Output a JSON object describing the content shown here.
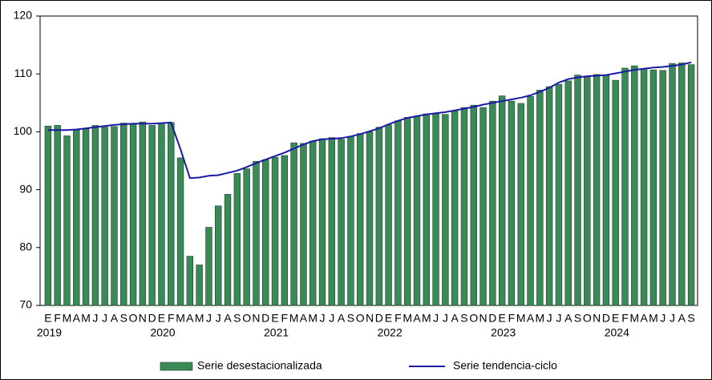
{
  "chart_data": {
    "type": "bar-line",
    "categories": [
      "E",
      "F",
      "M",
      "A",
      "M",
      "J",
      "J",
      "A",
      "S",
      "O",
      "N",
      "D",
      "E",
      "F",
      "M",
      "A",
      "M",
      "J",
      "J",
      "A",
      "S",
      "O",
      "N",
      "D",
      "E",
      "F",
      "M",
      "A",
      "M",
      "J",
      "J",
      "A",
      "S",
      "O",
      "N",
      "D",
      "E",
      "F",
      "M",
      "A",
      "M",
      "J",
      "J",
      "A",
      "S",
      "O",
      "N",
      "D",
      "E",
      "F",
      "M",
      "A",
      "M",
      "J",
      "J",
      "A",
      "S",
      "O",
      "N",
      "D",
      "E",
      "F",
      "M",
      "A",
      "M",
      "J",
      "J",
      "A",
      "S"
    ],
    "x_years": [
      "2019",
      null,
      null,
      null,
      null,
      null,
      null,
      null,
      null,
      null,
      null,
      null,
      "2020",
      null,
      null,
      null,
      null,
      null,
      null,
      null,
      null,
      null,
      null,
      null,
      "2021",
      null,
      null,
      null,
      null,
      null,
      null,
      null,
      null,
      null,
      null,
      null,
      "2022",
      null,
      null,
      null,
      null,
      null,
      null,
      null,
      null,
      null,
      null,
      null,
      "2023",
      null,
      null,
      null,
      null,
      null,
      null,
      null,
      null,
      null,
      null,
      null,
      "2024",
      null,
      null,
      null,
      null,
      null,
      null,
      null,
      null
    ],
    "series": [
      {
        "name": "Serie desestacionalizada",
        "type": "bar",
        "color": "#3a8a57",
        "values": [
          101.0,
          101.1,
          99.3,
          100.3,
          100.5,
          101.1,
          100.8,
          100.9,
          101.5,
          101.3,
          101.7,
          101.1,
          101.5,
          101.6,
          95.5,
          78.5,
          77.0,
          83.5,
          87.2,
          89.2,
          92.8,
          93.6,
          94.9,
          95.2,
          95.6,
          95.9,
          98.1,
          98.0,
          98.4,
          98.8,
          99.0,
          98.7,
          99.2,
          99.7,
          100.0,
          100.8,
          101.2,
          101.9,
          102.5,
          102.7,
          103.1,
          103.1,
          103.0,
          103.6,
          104.2,
          104.6,
          104.2,
          105.3,
          106.2,
          105.3,
          104.9,
          106.1,
          107.2,
          107.8,
          108.2,
          108.8,
          109.8,
          109.4,
          109.9,
          109.8,
          108.9,
          111.0,
          111.4,
          110.9,
          110.7,
          110.6,
          111.8,
          111.9,
          111.6
        ]
      },
      {
        "name": "Serie tendencia-ciclo",
        "type": "line",
        "color": "#1a1aa6",
        "values": [
          100.3,
          100.3,
          100.3,
          100.4,
          100.6,
          100.8,
          101.0,
          101.2,
          101.3,
          101.4,
          101.4,
          101.4,
          101.5,
          101.6,
          97.0,
          92.0,
          92.1,
          92.4,
          92.5,
          92.9,
          93.3,
          93.9,
          94.6,
          95.2,
          95.8,
          96.4,
          97.1,
          97.8,
          98.4,
          98.7,
          98.8,
          98.9,
          99.2,
          99.6,
          100.1,
          100.6,
          101.3,
          101.9,
          102.4,
          102.7,
          103.0,
          103.2,
          103.4,
          103.7,
          104.0,
          104.3,
          104.7,
          105.0,
          105.3,
          105.6,
          105.9,
          106.3,
          106.9,
          107.6,
          108.5,
          109.1,
          109.4,
          109.6,
          109.7,
          109.8,
          110.1,
          110.4,
          110.7,
          110.9,
          111.1,
          111.2,
          111.4,
          111.6,
          112.0
        ]
      }
    ],
    "ylim": [
      70,
      120
    ],
    "yticks": [
      70,
      80,
      90,
      100,
      110,
      120
    ],
    "grid": false,
    "legend": "bottom"
  }
}
